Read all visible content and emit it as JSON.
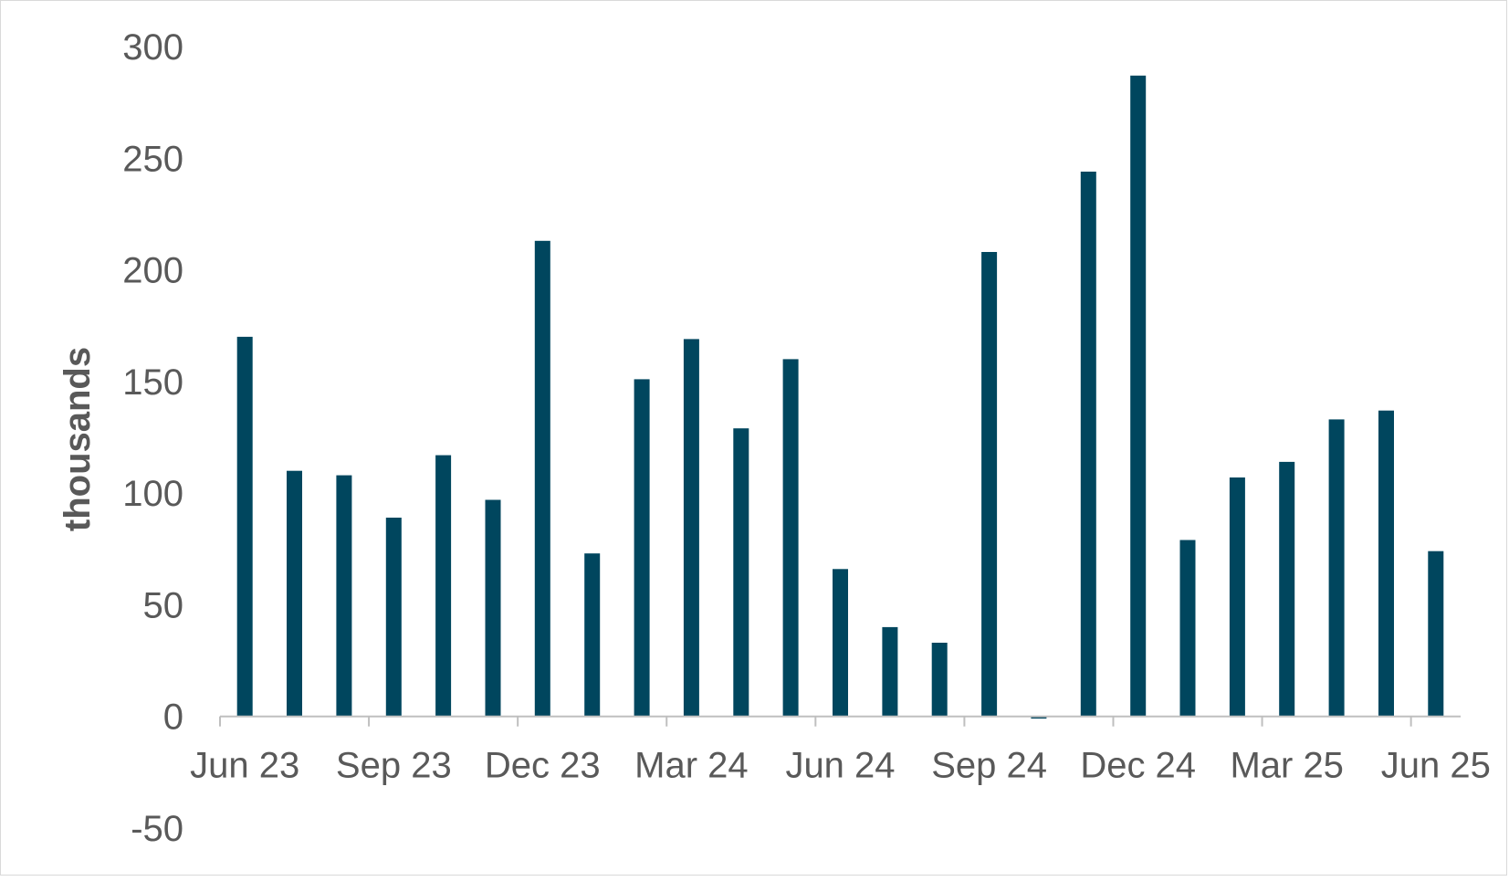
{
  "chart_data": {
    "type": "bar",
    "ylabel": "thousands",
    "xlabel": "",
    "title": "",
    "ylim": [
      -50,
      300
    ],
    "yticks": [
      -50,
      0,
      50,
      100,
      150,
      200,
      250,
      300
    ],
    "ytick_labels": [
      "-50",
      "0",
      "50",
      "100",
      "150",
      "200",
      "250",
      "300"
    ],
    "xtick_labels": [
      "Jun 23",
      "Sep 23",
      "Dec 23",
      "Mar 24",
      "Jun 24",
      "Sep 24",
      "Dec 24",
      "Mar 25",
      "Jun 25"
    ],
    "categories": [
      "Jun 23",
      "Jul 23",
      "Aug 23",
      "Sep 23",
      "Oct 23",
      "Nov 23",
      "Dec 23",
      "Jan 24",
      "Feb 24",
      "Mar 24",
      "Apr 24",
      "May 24",
      "Jun 24",
      "Jul 24",
      "Aug 24",
      "Sep 24",
      "Oct 24",
      "Nov 24",
      "Dec 24",
      "Jan 25",
      "Feb 25",
      "Mar 25",
      "Apr 25",
      "May 25",
      "Jun 25"
    ],
    "values": [
      170,
      110,
      108,
      89,
      117,
      97,
      213,
      73,
      151,
      169,
      129,
      160,
      66,
      40,
      33,
      208,
      -1,
      244,
      287,
      79,
      107,
      114,
      133,
      137,
      74
    ],
    "bar_color": "#00465e",
    "grid": false,
    "legend": "none"
  }
}
